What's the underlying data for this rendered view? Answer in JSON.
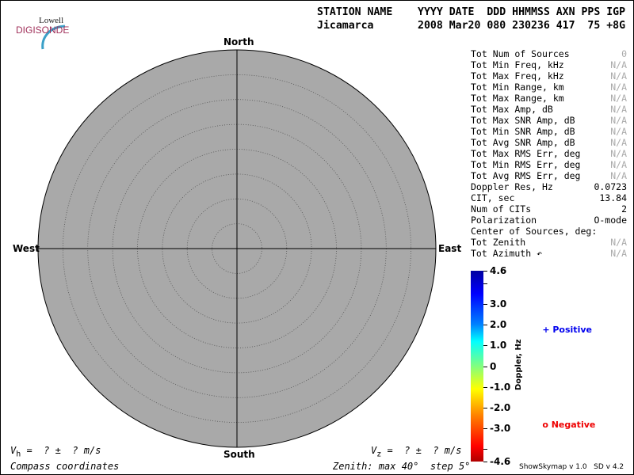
{
  "logo": {
    "line1": "Lowell",
    "line2": "DIGISONDE"
  },
  "header": {
    "labels": "STATION NAME    YYYY DATE  DDD HHMMSS AXN PPS IGP",
    "values": "Jicamarca       2008 Mar20 080 230236 417  75 +8G"
  },
  "skymap": {
    "north": "North",
    "south": "South",
    "east": "East",
    "west": "West",
    "background": "#a9a9a9"
  },
  "stats": [
    {
      "label": "Tot Num of Sources",
      "value": "0",
      "na": true
    },
    {
      "label": "Tot Min Freq, kHz",
      "value": "N/A",
      "na": true
    },
    {
      "label": "Tot Max Freq, kHz",
      "value": "N/A",
      "na": true
    },
    {
      "label": "Tot Min Range, km",
      "value": "N/A",
      "na": true
    },
    {
      "label": "Tot Max Range, km",
      "value": "N/A",
      "na": true
    },
    {
      "label": "Tot Max Amp, dB",
      "value": "N/A",
      "na": true
    },
    {
      "label": "Tot Max SNR Amp, dB",
      "value": "N/A",
      "na": true
    },
    {
      "label": "Tot Min SNR Amp, dB",
      "value": "N/A",
      "na": true
    },
    {
      "label": "Tot Avg SNR Amp, dB",
      "value": "N/A",
      "na": true
    },
    {
      "label": "Tot Max RMS Err, deg",
      "value": "N/A",
      "na": true
    },
    {
      "label": "Tot Min RMS Err, deg",
      "value": "N/A",
      "na": true
    },
    {
      "label": "Tot Avg RMS Err, deg",
      "value": "N/A",
      "na": true
    },
    {
      "label": "Doppler Res, Hz",
      "value": "0.0723",
      "na": false
    },
    {
      "label": "CIT, sec",
      "value": "13.84",
      "na": false
    },
    {
      "label": "Num of CITs",
      "value": "2",
      "na": false
    },
    {
      "label": "Polarization",
      "value": "O-mode",
      "na": false
    },
    {
      "label": "Center of Sources, deg:",
      "value": "",
      "na": false
    },
    {
      "label": "Tot            Zenith",
      "value": "N/A",
      "na": true
    },
    {
      "label": "Tot            Azimuth ↶",
      "value": "N/A",
      "na": true
    }
  ],
  "colorbar": {
    "title": "Doppler, Hz",
    "ticks": [
      "4.6",
      "3.0",
      "2.0",
      "1.0",
      "0",
      "-1.0",
      "-2.0",
      "-3.0",
      "-4.6"
    ],
    "range": [
      -4.6,
      4.6
    ]
  },
  "legend": {
    "positive": "Positive",
    "negative": "Negative",
    "positive_color": "#0000ee",
    "negative_color": "#ee0000"
  },
  "footer": {
    "vh": "V",
    "vh_sub": "h",
    "vh_rest": " =  ? ±  ? m/s",
    "vz": "V",
    "vz_sub": "z",
    "vz_rest": " =  ? ±  ? m/s",
    "coords": "Compass coordinates",
    "zenith": "Zenith: max 40°  step 5°",
    "version": "ShowSkymap v 1.0   SD v 4.2"
  }
}
